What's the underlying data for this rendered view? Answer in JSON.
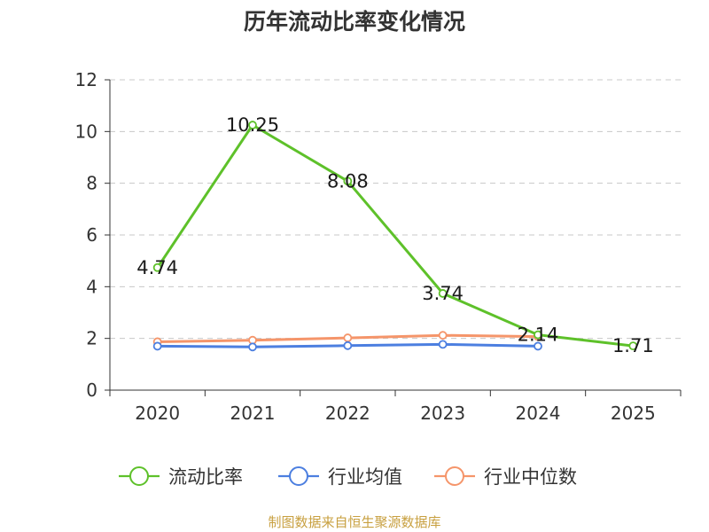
{
  "chart_data": {
    "type": "line",
    "title": "历年流动比率变化情况",
    "xlabel": "",
    "ylabel": "",
    "categories": [
      "2020",
      "2021",
      "2022",
      "2023",
      "2024",
      "2025"
    ],
    "ylim": [
      0,
      12
    ],
    "yticks": [
      "0",
      "2",
      "4",
      "6",
      "8",
      "10",
      "12"
    ],
    "grid": true,
    "legend_position": "bottom",
    "series": [
      {
        "name": "流动比率",
        "color": "#5ec12a",
        "values": [
          4.74,
          10.25,
          8.08,
          3.74,
          2.14,
          1.71
        ],
        "labels": [
          "4.74",
          "10.25",
          "8.08",
          "3.74",
          "2.14",
          "1.71"
        ],
        "show_labels": true
      },
      {
        "name": "行业均值",
        "color": "#4c7fe0",
        "values": [
          1.7,
          1.67,
          1.72,
          1.77,
          1.7,
          null
        ],
        "show_labels": false
      },
      {
        "name": "行业中位数",
        "color": "#f5956a",
        "values": [
          1.87,
          1.93,
          2.02,
          2.12,
          2.07,
          null
        ],
        "show_labels": false
      }
    ],
    "source": "制图数据来自恒生聚源数据库"
  }
}
